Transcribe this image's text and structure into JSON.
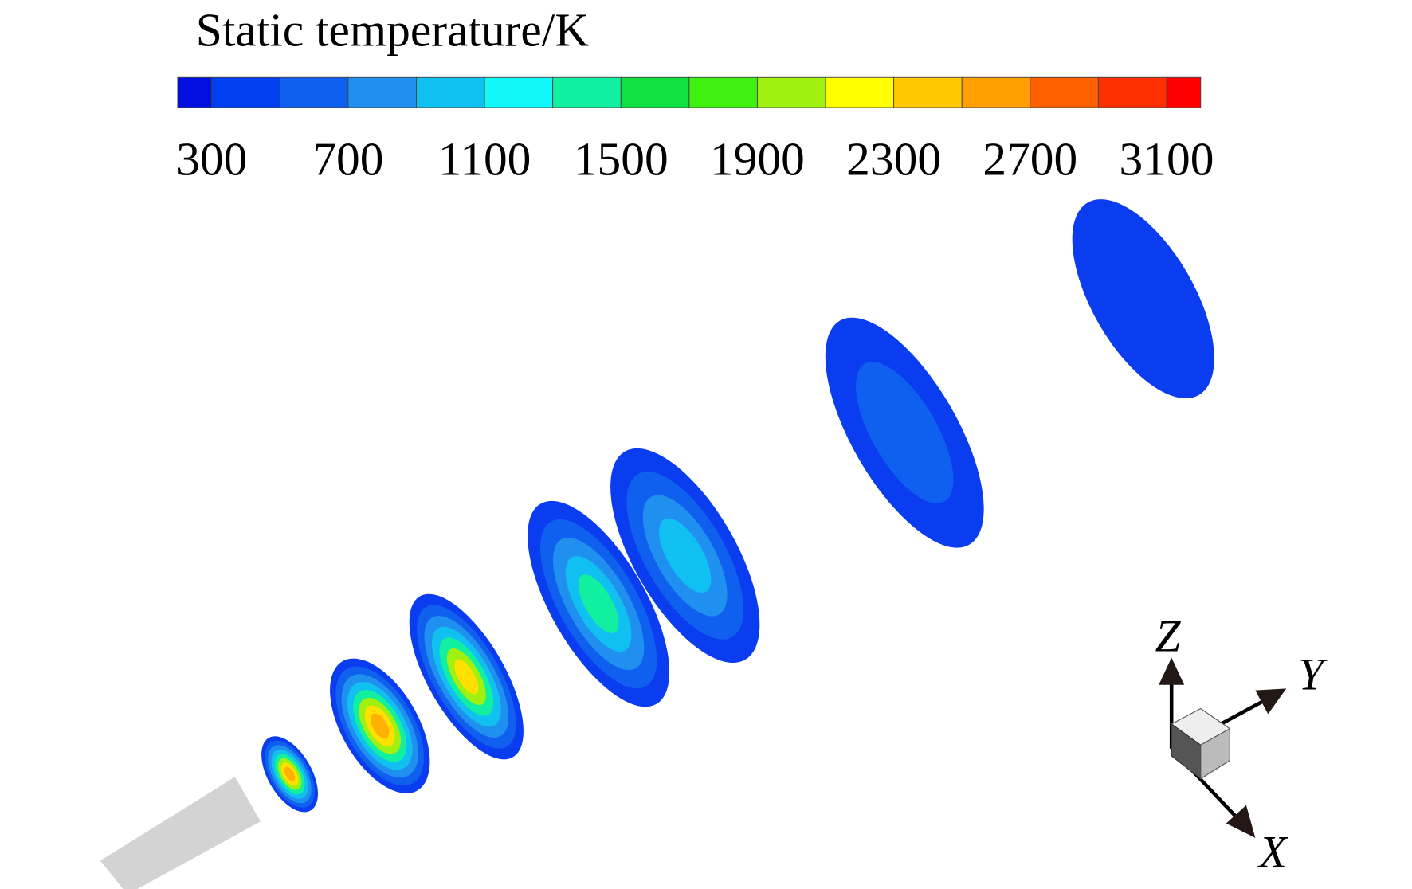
{
  "colorbar": {
    "title": "Static temperature/K",
    "ticks": [
      300,
      700,
      1100,
      1500,
      1900,
      2300,
      2700,
      3100
    ],
    "colors": [
      "#0010e0",
      "#0040f0",
      "#1060f0",
      "#2090f0",
      "#10c0f0",
      "#10f8f8",
      "#10f0a0",
      "#10e040",
      "#40f010",
      "#a0f010",
      "#ffff00",
      "#ffc800",
      "#ffa000",
      "#ff6000",
      "#ff3000",
      "#ff0000"
    ]
  },
  "axes_triad": {
    "labels": [
      "Z",
      "Y",
      "X"
    ]
  }
}
